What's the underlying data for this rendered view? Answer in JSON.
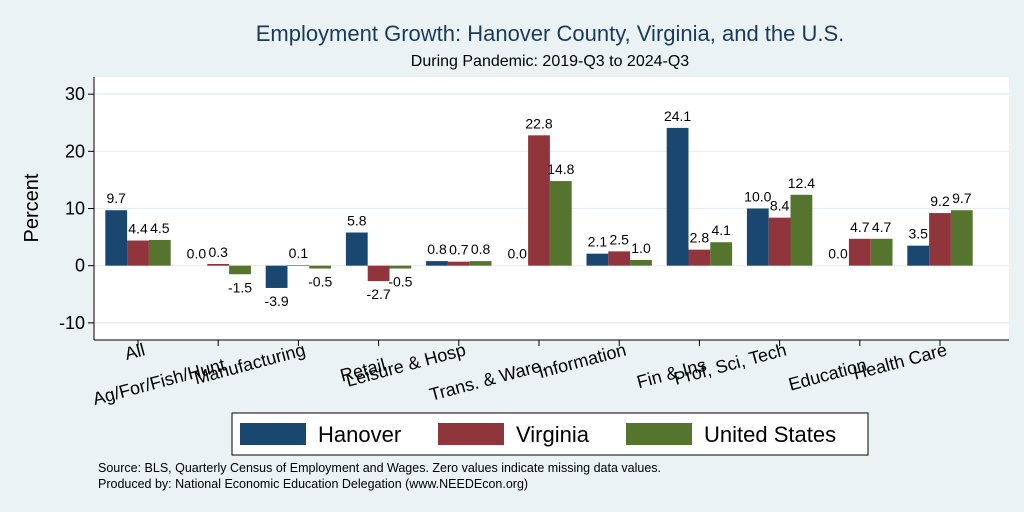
{
  "chart_data": {
    "type": "bar",
    "title": "Employment Growth: Hanover County, Virginia, and the U.S.",
    "subtitle": "During Pandemic: 2019-Q3 to 2024-Q3",
    "ylabel": "Percent",
    "ylim": [
      -13,
      33
    ],
    "yticks": [
      -10,
      0,
      10,
      20,
      30
    ],
    "grid": true,
    "legend_position": "bottom",
    "categories": [
      "All",
      "Ag/For/Fish/Hunt",
      "Manufacturing",
      "Retail",
      "Leisure & Hosp",
      "Trans. & Ware.",
      "Information",
      "Fin & Ins",
      "Prof, Sci, Tech",
      "Education",
      "Health Care"
    ],
    "series": [
      {
        "name": "Hanover",
        "color": "#1a476f",
        "values": [
          9.7,
          0.0,
          -3.9,
          5.8,
          0.8,
          0.0,
          2.1,
          24.1,
          10.0,
          0.0,
          3.5
        ],
        "labels": [
          "9.7",
          "0.0",
          "-3.9",
          "5.8",
          "0.8",
          "0.0",
          "2.1",
          "24.1",
          "10.0",
          "0.0",
          "3.5"
        ]
      },
      {
        "name": "Virginia",
        "color": "#90353b",
        "values": [
          4.4,
          0.3,
          0.1,
          -2.7,
          0.7,
          22.8,
          2.5,
          2.8,
          8.4,
          4.7,
          9.2
        ],
        "labels": [
          "4.4",
          "0.3",
          "0.1",
          "-2.7",
          "0.7",
          "22.8",
          "2.5",
          "2.8",
          "8.4",
          "4.7",
          "9.2"
        ]
      },
      {
        "name": "United States",
        "color": "#55752f",
        "values": [
          4.5,
          -1.5,
          -0.5,
          -0.5,
          0.8,
          14.8,
          1.0,
          4.1,
          12.4,
          4.7,
          9.7
        ],
        "labels": [
          "4.5",
          "-1.5",
          "-0.5",
          "-0.5",
          "0.8",
          "14.8",
          "1.0",
          "4.1",
          "12.4",
          "4.7",
          "9.7"
        ]
      }
    ],
    "source_lines": [
      "Source: BLS, Quarterly Census of Employment and Wages. Zero values indicate missing data values.",
      "Produced by: National Economic Education Delegation (www.NEEDEcon.org)"
    ]
  }
}
